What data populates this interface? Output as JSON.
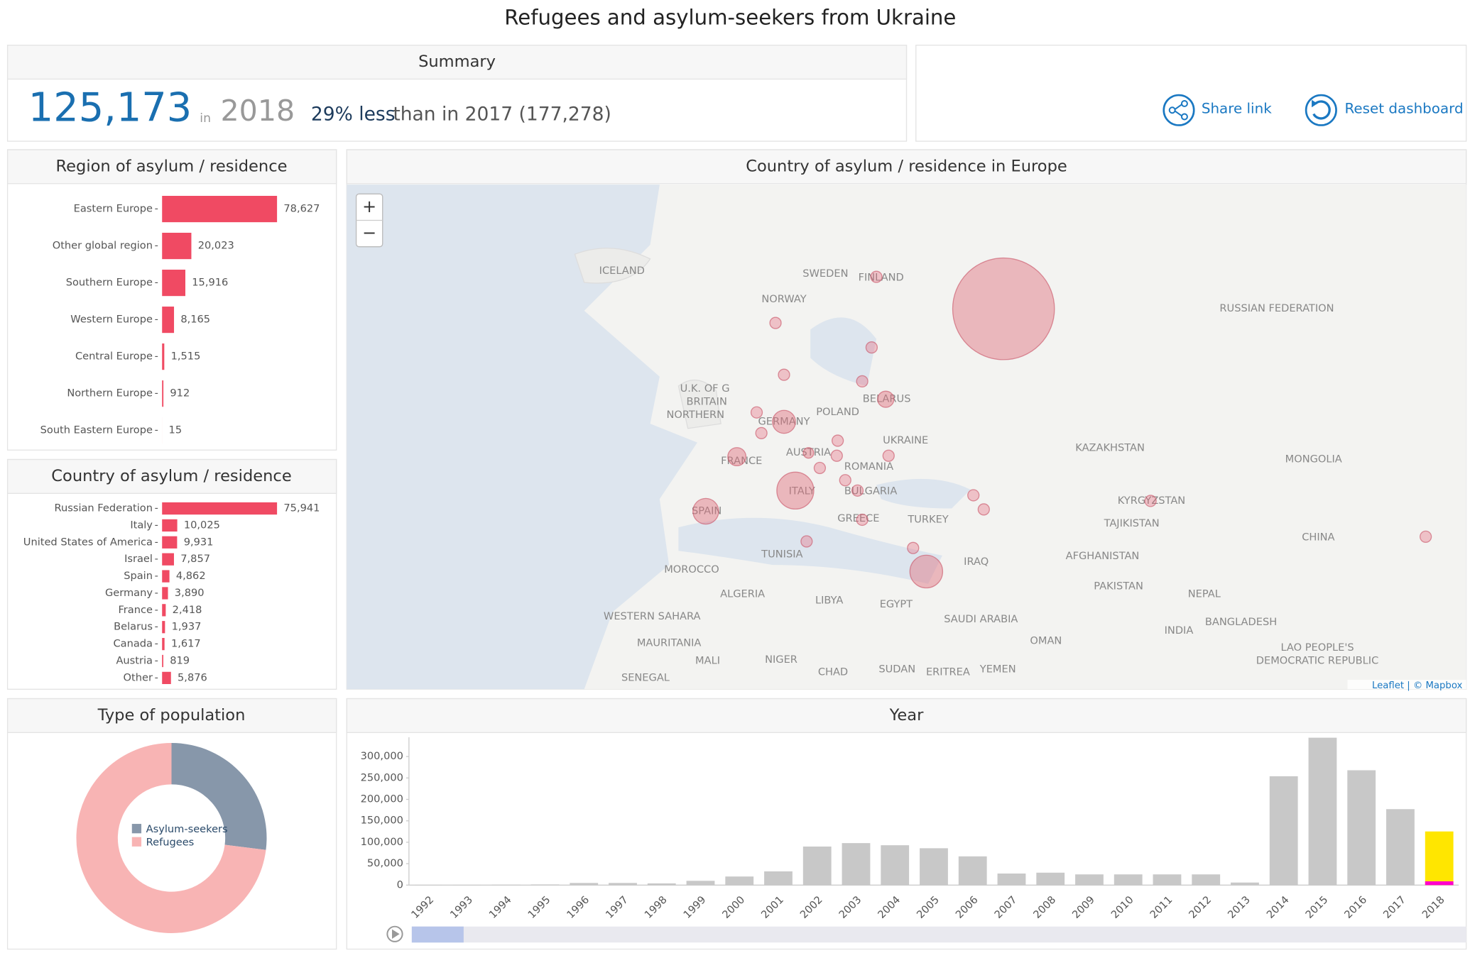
{
  "title": "Refugees and asylum-seekers from Ukraine",
  "summary": {
    "heading": "Summary",
    "total": "125,173",
    "in": "in",
    "year": "2018",
    "change": "29% less",
    "comparison": "than in 2017 (177,278)"
  },
  "actions": {
    "share": "Share link",
    "reset": "Reset dashboard"
  },
  "map": {
    "title": "Country of asylum / residence in Europe",
    "zoom_in": "+",
    "zoom_out": "−",
    "labels": [
      "ICELAND",
      "SWEDEN",
      "FINLAND",
      "NORWAY",
      "RUSSIAN FEDERATION",
      "U.K. OF G",
      "BRITAIN",
      "NORTHERN",
      "GERMANY",
      "POLAND",
      "BELARUS",
      "UKRAINE",
      "FRANCE",
      "AUSTRIA",
      "ROMANIA",
      "BULGARIA",
      "ITALY",
      "SPAIN",
      "GREECE",
      "TURKEY",
      "KAZAKHSTAN",
      "MONGOLIA",
      "KYRGYZSTAN",
      "TAJIKISTAN",
      "CHINA",
      "AFGHANISTAN",
      "PAKISTAN",
      "NEPAL",
      "INDIA",
      "BANGLADESH",
      "IRAQ",
      "SAUDI ARABIA",
      "OMAN",
      "YEMEN",
      "ERITREA",
      "SUDAN",
      "EGYPT",
      "LIBYA",
      "CHAD",
      "NIGER",
      "MALI",
      "ALGERIA",
      "TUNISIA",
      "MOROCCO",
      "WESTERN SAHARA",
      "MAURITANIA",
      "SENEGAL",
      "LAO PEOPLE'S",
      "DEMOCRATIC REPUBLIC"
    ],
    "attribution": "Leaflet | © Mapbox"
  },
  "chart_data": [
    {
      "type": "bar",
      "orientation": "horizontal",
      "title": "Region of asylum / residence",
      "categories": [
        "Eastern Europe",
        "Other global region",
        "Southern Europe",
        "Western Europe",
        "Central Europe",
        "Northern Europe",
        "South Eastern Europe"
      ],
      "values": [
        78627,
        20023,
        15916,
        8165,
        1515,
        912,
        15
      ],
      "value_labels": [
        "78,627",
        "20,023",
        "15,916",
        "8,165",
        "1,515",
        "912",
        "15"
      ],
      "color": "#f04a63"
    },
    {
      "type": "bar",
      "orientation": "horizontal",
      "title": "Country of asylum / residence",
      "categories": [
        "Russian Federation",
        "Italy",
        "United States of America",
        "Israel",
        "Spain",
        "Germany",
        "France",
        "Belarus",
        "Canada",
        "Austria",
        "Other"
      ],
      "values": [
        75941,
        10025,
        9931,
        7857,
        4862,
        3890,
        2418,
        1937,
        1617,
        819,
        5876
      ],
      "value_labels": [
        "75,941",
        "10,025",
        "9,931",
        "7,857",
        "4,862",
        "3,890",
        "2,418",
        "1,937",
        "1,617",
        "819",
        "5,876"
      ],
      "color": "#f04a63"
    },
    {
      "type": "donut",
      "title": "Type of population",
      "categories": [
        "Asylum-seekers",
        "Refugees"
      ],
      "values": [
        27,
        73
      ],
      "colors": [
        "#8797aa",
        "#f8b4b4"
      ]
    },
    {
      "type": "bar",
      "orientation": "vertical",
      "title": "Year",
      "categories": [
        "1992",
        "1993",
        "1994",
        "1995",
        "1996",
        "1997",
        "1998",
        "1999",
        "2000",
        "2001",
        "2002",
        "2003",
        "2004",
        "2005",
        "2006",
        "2007",
        "2008",
        "2009",
        "2010",
        "2011",
        "2012",
        "2013",
        "2014",
        "2015",
        "2016",
        "2017",
        "2018"
      ],
      "values": [
        300,
        500,
        1000,
        1500,
        5000,
        5000,
        4000,
        10000,
        20000,
        32000,
        90000,
        98000,
        93000,
        86000,
        67000,
        27000,
        29000,
        25000,
        25000,
        25000,
        25000,
        6000,
        254000,
        344000,
        268000,
        177278,
        125173
      ],
      "colors": [
        "#c8c8c8",
        "#c8c8c8",
        "#c8c8c8",
        "#c8c8c8",
        "#c8c8c8",
        "#c8c8c8",
        "#c8c8c8",
        "#c8c8c8",
        "#c8c8c8",
        "#c8c8c8",
        "#c8c8c8",
        "#c8c8c8",
        "#c8c8c8",
        "#c8c8c8",
        "#c8c8c8",
        "#c8c8c8",
        "#c8c8c8",
        "#c8c8c8",
        "#c8c8c8",
        "#c8c8c8",
        "#c8c8c8",
        "#c8c8c8",
        "#c8c8c8",
        "#c8c8c8",
        "#c8c8c8",
        "#c8c8c8",
        "#ffe600"
      ],
      "ylim": [
        0,
        345000
      ],
      "yticks": [
        0,
        {
          "value": 50000,
          "label": "50,000"
        },
        {
          "value": 100000,
          "label": "100,000"
        },
        {
          "value": 150000,
          "label": "150,000"
        },
        {
          "value": 200000,
          "label": "200,000"
        },
        {
          "value": 250000,
          "label": "250,000"
        },
        {
          "value": 300000,
          "label": "300,000"
        }
      ]
    }
  ]
}
